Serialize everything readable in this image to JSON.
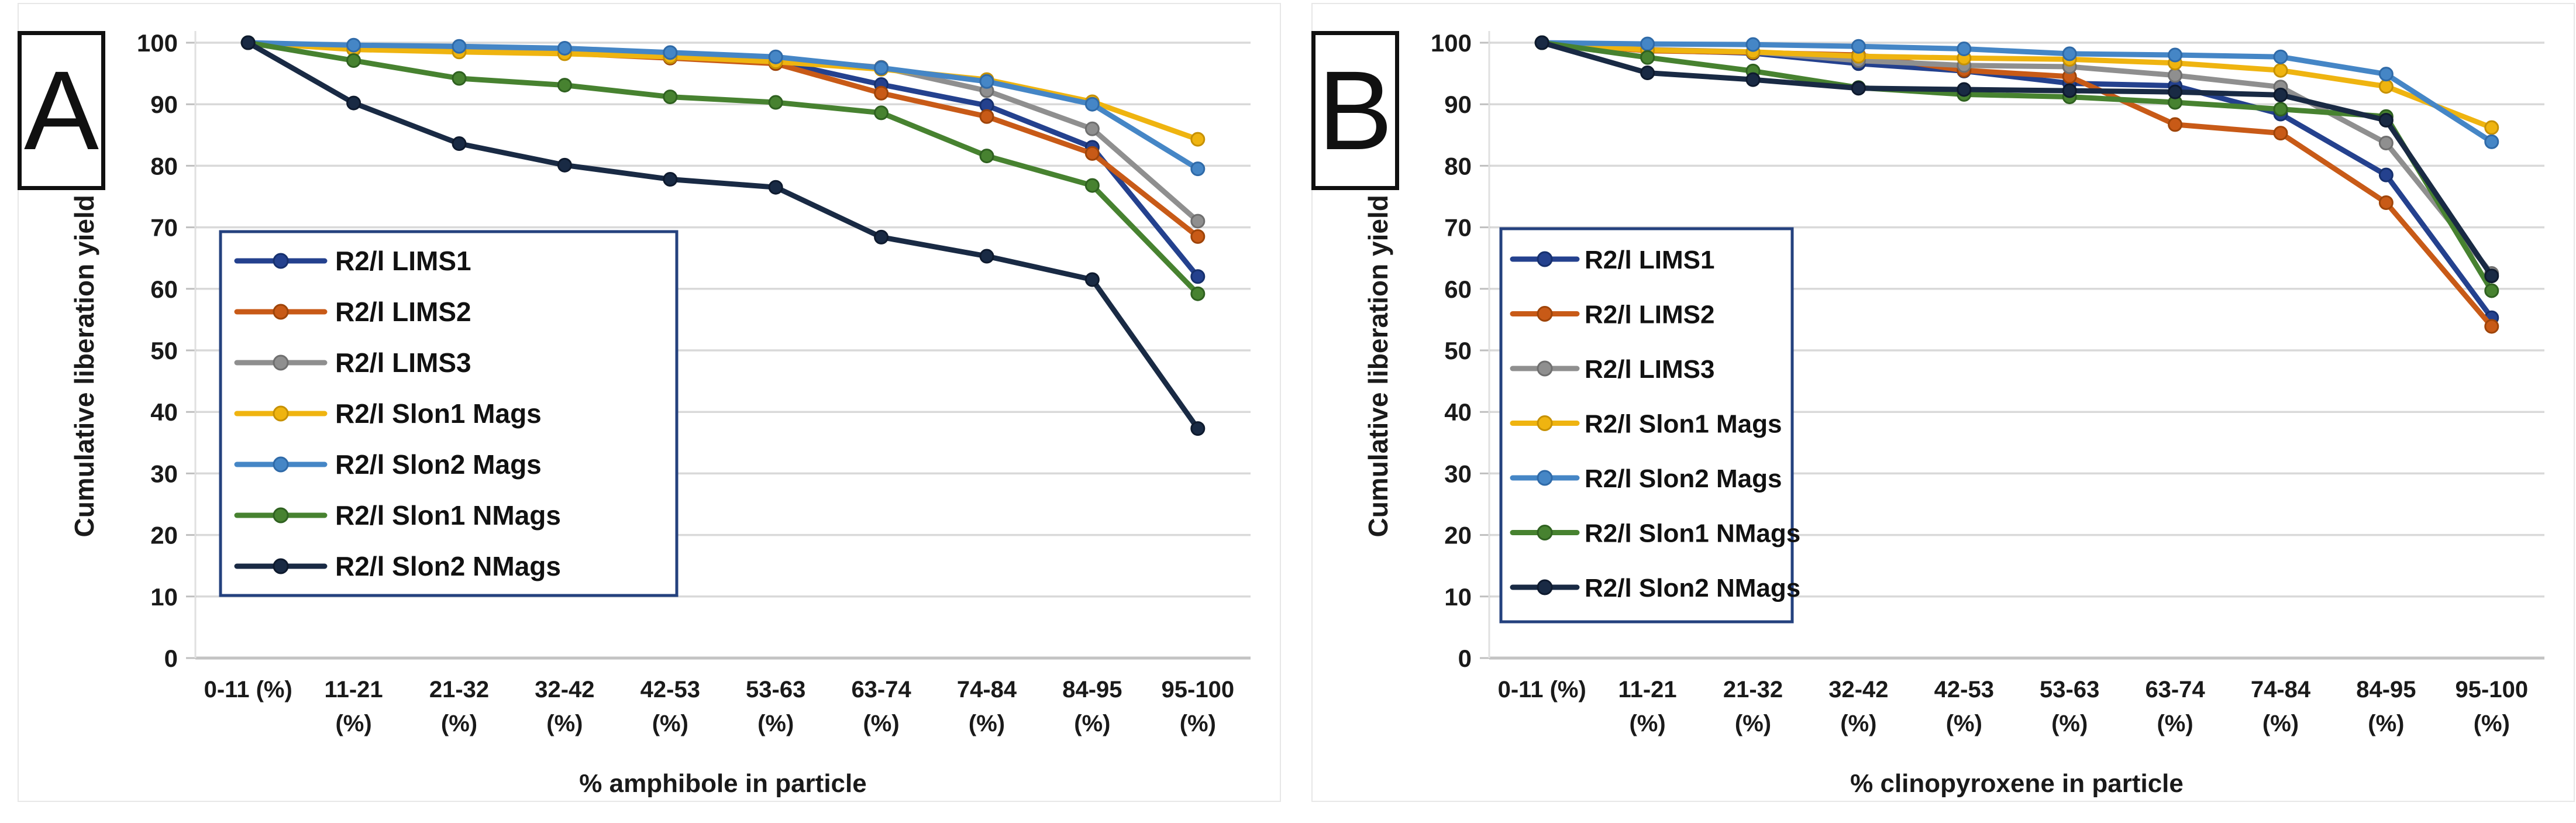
{
  "figure": {
    "background": "#ffffff",
    "panel_border_color": "#e7e7e7",
    "grid_color": "#d9d9d9",
    "axis_line_color": "#bfbfbf",
    "legend_border_color": "#24417e",
    "panels": [
      {
        "label": "A"
      },
      {
        "label": "B"
      }
    ]
  },
  "chart_data": [
    {
      "type": "line",
      "title": "",
      "panel": "A",
      "xlabel": "% amphibole in particle",
      "ylabel": "Cumulative liberation yield %",
      "ylim": [
        0,
        100
      ],
      "ytick_step": 10,
      "grid": true,
      "legend_position": "inside-left",
      "categories": [
        "0-11 (%)",
        "11-21 (%)",
        "21-32 (%)",
        "32-42 (%)",
        "42-53 (%)",
        "53-63 (%)",
        "63-74 (%)",
        "74-84 (%)",
        "84-95 (%)",
        "95-100 (%)"
      ],
      "series": [
        {
          "name": "R2/l LIMS1",
          "color": "#24418e",
          "marker_stroke": "#16306e",
          "values": [
            100,
            99.3,
            98.9,
            98.6,
            97.9,
            97.0,
            93.2,
            89.8,
            83.0,
            62.0
          ]
        },
        {
          "name": "R2/l LIMS2",
          "color": "#c85a17",
          "marker_stroke": "#9e4409",
          "values": [
            100,
            99.1,
            98.7,
            98.3,
            97.5,
            96.6,
            91.8,
            88.0,
            82.0,
            68.5
          ]
        },
        {
          "name": "R2/l LIMS3",
          "color": "#8f8f8f",
          "marker_stroke": "#6f6f6f",
          "values": [
            100,
            99.4,
            99.0,
            98.8,
            98.1,
            97.4,
            96.0,
            92.2,
            86.0,
            71.0
          ]
        },
        {
          "name": "R2/l Slon1 Mags",
          "color": "#efb410",
          "marker_stroke": "#c69104",
          "values": [
            100,
            98.9,
            98.5,
            98.2,
            97.7,
            96.9,
            95.7,
            94.0,
            90.4,
            84.3
          ]
        },
        {
          "name": "R2/l Slon2 Mags",
          "color": "#4586c6",
          "marker_stroke": "#2f6aa8",
          "values": [
            100,
            99.6,
            99.4,
            99.1,
            98.4,
            97.7,
            95.9,
            93.7,
            90.0,
            79.5
          ]
        },
        {
          "name": "R2/l Slon1 NMags",
          "color": "#478230",
          "marker_stroke": "#2f6120",
          "values": [
            100,
            97.1,
            94.2,
            93.1,
            91.2,
            90.3,
            88.6,
            81.6,
            76.8,
            59.2
          ]
        },
        {
          "name": "R2/l Slon2 NMags",
          "color": "#192a44",
          "marker_stroke": "#0e1a2e",
          "values": [
            100,
            90.2,
            83.6,
            80.1,
            77.8,
            76.5,
            68.4,
            65.3,
            61.5,
            37.3
          ]
        }
      ]
    },
    {
      "type": "line",
      "title": "",
      "panel": "B",
      "xlabel": "% clinopyroxene in particle",
      "ylabel": "Cumulative liberation yield %",
      "ylim": [
        0,
        100
      ],
      "ytick_step": 10,
      "grid": true,
      "legend_position": "inside-left",
      "categories": [
        "0-11 (%)",
        "11-21 (%)",
        "21-32 (%)",
        "32-42 (%)",
        "42-53 (%)",
        "53-63 (%)",
        "63-74 (%)",
        "74-84 (%)",
        "84-95 (%)",
        "95-100 (%)"
      ],
      "series": [
        {
          "name": "R2/l LIMS1",
          "color": "#24418e",
          "marker_stroke": "#16306e",
          "values": [
            100,
            98.8,
            98.3,
            96.6,
            95.4,
            93.4,
            93.0,
            88.4,
            78.5,
            55.3
          ]
        },
        {
          "name": "R2/l LIMS2",
          "color": "#c85a17",
          "marker_stroke": "#9e4409",
          "values": [
            100,
            98.7,
            98.4,
            98.0,
            95.5,
            94.5,
            86.7,
            85.3,
            74.0,
            53.9
          ]
        },
        {
          "name": "R2/l LIMS3",
          "color": "#8f8f8f",
          "marker_stroke": "#6f6f6f",
          "values": [
            100,
            98.9,
            98.5,
            97.1,
            96.3,
            96.1,
            94.7,
            92.8,
            83.7,
            62.5
          ]
        },
        {
          "name": "R2/l Slon1 Mags",
          "color": "#efb410",
          "marker_stroke": "#c69104",
          "values": [
            100,
            98.8,
            98.5,
            97.8,
            97.5,
            97.3,
            96.7,
            95.5,
            92.9,
            86.2
          ]
        },
        {
          "name": "R2/l Slon2 Mags",
          "color": "#4586c6",
          "marker_stroke": "#2f6aa8",
          "values": [
            100,
            99.8,
            99.7,
            99.4,
            99.0,
            98.2,
            98.0,
            97.7,
            94.9,
            83.9
          ]
        },
        {
          "name": "R2/l Slon1 NMags",
          "color": "#478230",
          "marker_stroke": "#2f6120",
          "values": [
            100,
            97.6,
            95.4,
            92.7,
            91.6,
            91.2,
            90.3,
            89.2,
            88.0,
            59.7
          ]
        },
        {
          "name": "R2/l Slon2 NMags",
          "color": "#192a44",
          "marker_stroke": "#0e1a2e",
          "values": [
            100,
            95.1,
            94.0,
            92.6,
            92.4,
            92.2,
            92.0,
            91.5,
            87.4,
            62.1
          ]
        }
      ]
    }
  ]
}
